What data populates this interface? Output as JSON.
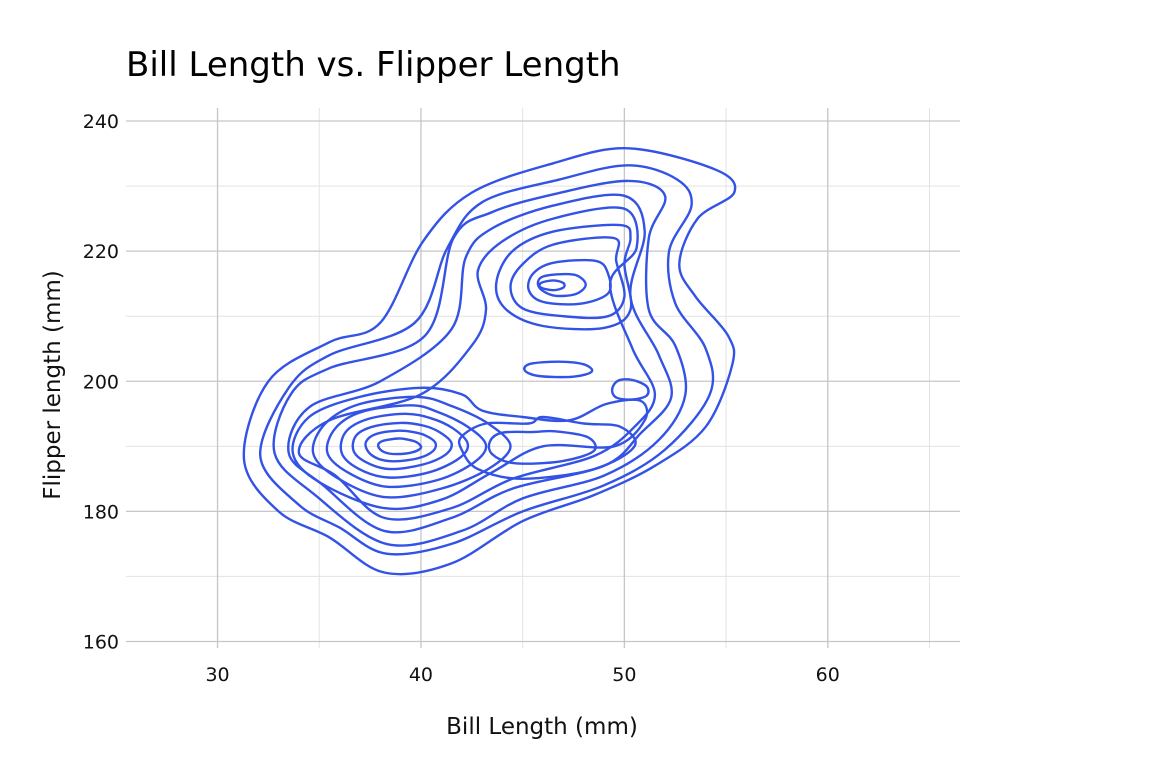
{
  "chart_data": {
    "type": "contour",
    "title": "Bill Length vs. Flipper Length",
    "xlabel": "Bill Length (mm)",
    "ylabel": "Flipper length (mm)",
    "xlim": [
      25.5,
      66.5
    ],
    "ylim": [
      159,
      242
    ],
    "x_ticks": [
      30,
      40,
      50,
      60
    ],
    "y_ticks": [
      160,
      180,
      200,
      220,
      240
    ],
    "x_tick_labels": [
      "30",
      "40",
      "50",
      "60"
    ],
    "y_tick_labels": [
      "160",
      "180",
      "200",
      "220",
      "240"
    ],
    "x_minor": [
      35,
      45,
      55,
      65
    ],
    "y_minor": [
      170,
      190,
      210,
      230
    ],
    "grid": true,
    "line_color": "#3352e6",
    "density_peaks": [
      {
        "x": 38.6,
        "y": 189,
        "levels": 13
      },
      {
        "x": 46.5,
        "y": 214.5,
        "levels": 12
      },
      {
        "x": 50.3,
        "y": 198.5,
        "levels": 1
      },
      {
        "x": 46.3,
        "y": 201.7,
        "levels": 1
      }
    ],
    "contours": [
      [
        [
          50.2,
          235.8
        ],
        [
          46.5,
          233.5
        ],
        [
          42.5,
          229
        ],
        [
          40.1,
          221.5
        ],
        [
          38,
          209
        ],
        [
          35.5,
          206
        ],
        [
          32.5,
          200
        ],
        [
          31.3,
          188
        ],
        [
          33,
          180
        ],
        [
          35.5,
          176
        ],
        [
          38.2,
          170.6
        ],
        [
          41.5,
          172
        ],
        [
          45,
          178.5
        ],
        [
          48.5,
          182.5
        ],
        [
          51.5,
          187
        ],
        [
          54,
          193
        ],
        [
          55.3,
          202.5
        ],
        [
          55.1,
          207
        ],
        [
          53.5,
          213
        ],
        [
          52.7,
          218
        ],
        [
          53.6,
          225
        ],
        [
          55.4,
          229
        ],
        [
          54.5,
          232.5
        ],
        [
          50.2,
          235.8
        ]
      ],
      [
        [
          50.2,
          233.2
        ],
        [
          46.8,
          231
        ],
        [
          43,
          227.5
        ],
        [
          41.3,
          220.5
        ],
        [
          39.7,
          209
        ],
        [
          35.5,
          204
        ],
        [
          33.5,
          199
        ],
        [
          32.1,
          188.5
        ],
        [
          34,
          181
        ],
        [
          36,
          177.5
        ],
        [
          38.3,
          173.5
        ],
        [
          41.5,
          175
        ],
        [
          45,
          180
        ],
        [
          49,
          184
        ],
        [
          52,
          189.5
        ],
        [
          54.2,
          198
        ],
        [
          54,
          205
        ],
        [
          52.5,
          212
        ],
        [
          52.2,
          220
        ],
        [
          53.3,
          227
        ],
        [
          52.6,
          231
        ],
        [
          50.2,
          233.2
        ]
      ],
      [
        [
          50.2,
          230.8
        ],
        [
          46.6,
          228.8
        ],
        [
          43.5,
          226
        ],
        [
          41.6,
          222
        ],
        [
          40.2,
          207
        ],
        [
          35.5,
          202
        ],
        [
          33.6,
          198
        ],
        [
          32.8,
          189
        ],
        [
          34.8,
          182.5
        ],
        [
          38.3,
          175
        ],
        [
          42,
          177
        ],
        [
          45,
          182
        ],
        [
          49,
          185.5
        ],
        [
          51.7,
          191
        ],
        [
          53,
          198
        ],
        [
          52.5,
          205.5
        ],
        [
          51.2,
          211
        ],
        [
          51.2,
          222
        ],
        [
          52,
          228.5
        ],
        [
          50.2,
          230.8
        ]
      ],
      [
        [
          50,
          228.5
        ],
        [
          46.5,
          227
        ],
        [
          43.5,
          223.5
        ],
        [
          42.2,
          219
        ],
        [
          41.5,
          208
        ],
        [
          38,
          200
        ],
        [
          34.5,
          196
        ],
        [
          33.5,
          189
        ],
        [
          35.2,
          184
        ],
        [
          38.2,
          177
        ],
        [
          41.5,
          179
        ],
        [
          44.5,
          183.5
        ],
        [
          49,
          187
        ],
        [
          50.8,
          192
        ],
        [
          52.3,
          197.5
        ],
        [
          51.7,
          204
        ],
        [
          50.3,
          213
        ],
        [
          51,
          223
        ],
        [
          50,
          228.5
        ]
      ],
      [
        [
          50,
          226.5
        ],
        [
          46.5,
          225
        ],
        [
          44,
          221.5
        ],
        [
          42.8,
          217
        ],
        [
          43.2,
          211
        ],
        [
          42.5,
          205.5
        ],
        [
          40,
          198
        ],
        [
          35.5,
          194
        ],
        [
          34,
          189
        ],
        [
          35.8,
          185.5
        ],
        [
          38.2,
          179
        ],
        [
          41.5,
          180.5
        ],
        [
          44.5,
          185
        ],
        [
          48.5,
          188.5
        ],
        [
          50.5,
          193
        ],
        [
          51.5,
          198
        ],
        [
          50.4,
          205
        ],
        [
          49.3,
          215
        ],
        [
          50.6,
          220.5
        ],
        [
          50,
          226.5
        ]
      ],
      [
        [
          49.8,
          224
        ],
        [
          46.5,
          223
        ],
        [
          44.5,
          220
        ],
        [
          43.7,
          215
        ],
        [
          44.2,
          211
        ],
        [
          46,
          208.5
        ],
        [
          49,
          208.2
        ],
        [
          50.3,
          211
        ],
        [
          50,
          218
        ],
        [
          50.3,
          222
        ],
        [
          49.8,
          224
        ]
      ],
      [
        [
          49.5,
          222
        ],
        [
          46.5,
          221
        ],
        [
          45,
          218
        ],
        [
          44.4,
          214.5
        ],
        [
          45,
          211.2
        ],
        [
          47,
          210
        ],
        [
          49.2,
          210
        ],
        [
          50,
          213
        ],
        [
          49.6,
          218.5
        ],
        [
          49.5,
          222
        ]
      ],
      [
        [
          48.6,
          218.5
        ],
        [
          46.5,
          218.2
        ],
        [
          45.5,
          216.5
        ],
        [
          45.3,
          214
        ],
        [
          46,
          212.2
        ],
        [
          47.8,
          211.9
        ],
        [
          49.2,
          213.5
        ],
        [
          49.2,
          216.5
        ],
        [
          48.6,
          218.5
        ]
      ],
      [
        [
          47.5,
          216.4
        ],
        [
          46,
          216.1
        ],
        [
          45.8,
          214.5
        ],
        [
          46.5,
          213.2
        ],
        [
          47.6,
          213.4
        ],
        [
          48.1,
          214.9
        ],
        [
          47.5,
          216.4
        ]
      ],
      [
        [
          46.5,
          215.5
        ],
        [
          45.9,
          215.1
        ],
        [
          45.9,
          214.4
        ],
        [
          46.5,
          214
        ],
        [
          47,
          214.4
        ],
        [
          47,
          215.1
        ],
        [
          46.5,
          215.5
        ]
      ],
      [
        [
          46.8,
          203
        ],
        [
          45.4,
          202.7
        ],
        [
          45.1,
          201.7
        ],
        [
          45.8,
          200.8
        ],
        [
          47.5,
          200.7
        ],
        [
          48.4,
          201.5
        ],
        [
          48,
          202.6
        ],
        [
          46.8,
          203
        ]
      ],
      [
        [
          50.4,
          200.2
        ],
        [
          49.7,
          200.1
        ],
        [
          49.4,
          198.8
        ],
        [
          49.6,
          197.5
        ],
        [
          50.4,
          197.2
        ],
        [
          51.1,
          197.8
        ],
        [
          51.1,
          199.2
        ],
        [
          50.4,
          200.2
        ]
      ],
      [
        [
          40,
          199
        ],
        [
          37,
          197.6
        ],
        [
          34.5,
          194.5
        ],
        [
          33.7,
          189
        ],
        [
          35,
          184.5
        ],
        [
          38.2,
          180.5
        ],
        [
          41,
          181.8
        ],
        [
          43.5,
          186
        ],
        [
          46,
          190
        ],
        [
          49.5,
          190
        ],
        [
          51,
          194
        ],
        [
          50.8,
          197
        ],
        [
          49.1,
          196.5
        ],
        [
          47.3,
          194
        ],
        [
          45,
          194.5
        ],
        [
          43,
          195.5
        ],
        [
          42,
          198
        ],
        [
          40,
          199
        ]
      ],
      [
        [
          39.8,
          197.6
        ],
        [
          37,
          196.5
        ],
        [
          35.3,
          193.5
        ],
        [
          34.7,
          189
        ],
        [
          35.8,
          185.3
        ],
        [
          38.2,
          182.2
        ],
        [
          41,
          183.5
        ],
        [
          43.3,
          186.5
        ],
        [
          44.4,
          190
        ],
        [
          43.3,
          193.5
        ],
        [
          41.5,
          196.2
        ],
        [
          39.8,
          197.6
        ]
      ],
      [
        [
          39.5,
          196.3
        ],
        [
          37.1,
          195.3
        ],
        [
          35.8,
          192.8
        ],
        [
          35.4,
          189
        ],
        [
          36.4,
          186
        ],
        [
          38.3,
          183.8
        ],
        [
          40.8,
          184.8
        ],
        [
          42.6,
          187.5
        ],
        [
          43.2,
          190.2
        ],
        [
          42.3,
          193
        ],
        [
          40.8,
          195.3
        ],
        [
          39.5,
          196.3
        ]
      ],
      [
        [
          39.2,
          195
        ],
        [
          37.4,
          194.2
        ],
        [
          36.3,
          192.2
        ],
        [
          36.1,
          189
        ],
        [
          36.9,
          186.6
        ],
        [
          38.4,
          185.2
        ],
        [
          40.4,
          186
        ],
        [
          41.9,
          188.2
        ],
        [
          42.3,
          190.4
        ],
        [
          41.6,
          192.7
        ],
        [
          40.5,
          194.3
        ],
        [
          39.2,
          195
        ]
      ],
      [
        [
          39,
          193.6
        ],
        [
          37.6,
          193
        ],
        [
          36.8,
          191.6
        ],
        [
          36.7,
          189.2
        ],
        [
          37.4,
          187.4
        ],
        [
          38.5,
          186.5
        ],
        [
          40.1,
          187.2
        ],
        [
          41.2,
          188.7
        ],
        [
          41.5,
          190.5
        ],
        [
          40.9,
          192.2
        ],
        [
          40.1,
          193.2
        ],
        [
          39,
          193.6
        ]
      ],
      [
        [
          38.9,
          192.4
        ],
        [
          37.8,
          191.9
        ],
        [
          37.3,
          190.7
        ],
        [
          37.4,
          189.2
        ],
        [
          37.9,
          188.1
        ],
        [
          38.7,
          187.7
        ],
        [
          39.9,
          188.2
        ],
        [
          40.6,
          189.3
        ],
        [
          40.7,
          190.6
        ],
        [
          40.2,
          191.7
        ],
        [
          39.6,
          192.2
        ],
        [
          38.9,
          192.4
        ]
      ],
      [
        [
          38.9,
          191.2
        ],
        [
          38.1,
          190.8
        ],
        [
          37.9,
          190
        ],
        [
          38.2,
          189.1
        ],
        [
          38.8,
          188.8
        ],
        [
          39.6,
          189.1
        ],
        [
          40,
          189.8
        ],
        [
          39.8,
          190.6
        ],
        [
          39.4,
          191
        ],
        [
          38.9,
          191.2
        ]
      ],
      [
        [
          45.3,
          193.5
        ],
        [
          43.2,
          193.5
        ],
        [
          42,
          191.5
        ],
        [
          42,
          189.5
        ],
        [
          42.8,
          186.5
        ],
        [
          45,
          185
        ],
        [
          48.5,
          186.5
        ],
        [
          50.5,
          190
        ],
        [
          49.8,
          193
        ],
        [
          48,
          193.5
        ],
        [
          46,
          194.5
        ],
        [
          45.3,
          193.5
        ]
      ],
      [
        [
          45.5,
          192.2
        ],
        [
          44,
          192.1
        ],
        [
          43.4,
          190.8
        ],
        [
          43.5,
          188.8
        ],
        [
          44.6,
          187.4
        ],
        [
          46.9,
          187.7
        ],
        [
          48.5,
          189.3
        ],
        [
          48.2,
          191.4
        ],
        [
          46.6,
          192.3
        ],
        [
          45.5,
          192.2
        ]
      ]
    ]
  }
}
